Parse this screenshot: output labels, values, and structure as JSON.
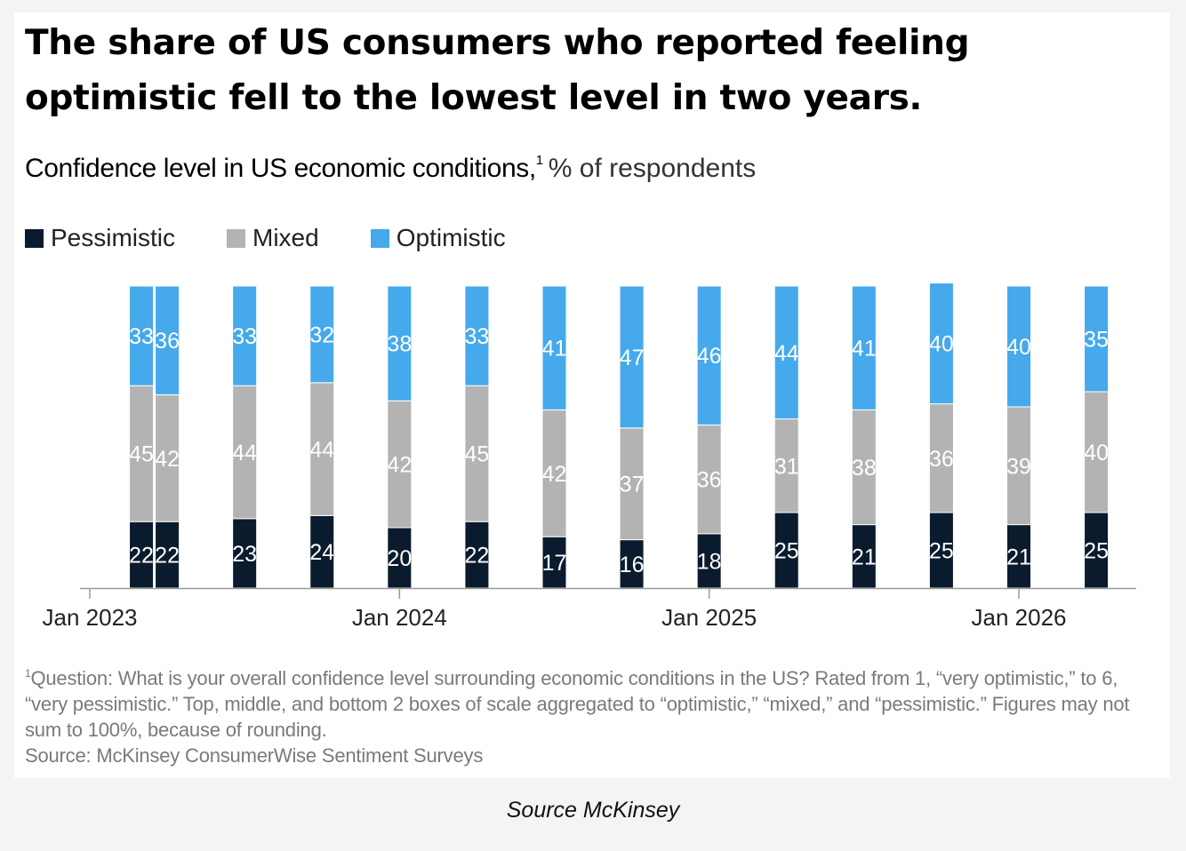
{
  "caption": "Source McKinsey",
  "chart_data": {
    "type": "bar",
    "stacked": true,
    "title": "The share of US consumers who reported feeling optimistic fell to the lowest level in two years.",
    "subtitle": "Confidence level in US economic conditions,",
    "subtitle_footnote_mark": "1",
    "subtitle_unit": "% of respondents",
    "x_ticks": [
      "Jan 2023",
      "Jan 2024",
      "Jan 2025",
      "Jan 2026"
    ],
    "x_tick_dates": [
      "2023-01",
      "2024-01",
      "2025-01",
      "2026-01"
    ],
    "x_dates": [
      "2023-03",
      "2023-04",
      "2023-07",
      "2023-10",
      "2024-01",
      "2024-04",
      "2024-07",
      "2024-10",
      "2025-01",
      "2025-04",
      "2025-07",
      "2025-10",
      "2026-01",
      "2026-04"
    ],
    "series": [
      {
        "name": "Pessimistic",
        "color": "#0b1b2e",
        "label_color": "#ffffff",
        "values": [
          22,
          22,
          23,
          24,
          20,
          22,
          17,
          16,
          18,
          25,
          21,
          25,
          21,
          25
        ]
      },
      {
        "name": "Mixed",
        "color": "#b3b3b3",
        "label_color": "#ffffff",
        "values": [
          45,
          42,
          44,
          44,
          42,
          45,
          42,
          37,
          36,
          31,
          38,
          36,
          39,
          40
        ]
      },
      {
        "name": "Optimistic",
        "color": "#45a9ec",
        "label_color": "#ffffff",
        "values": [
          33,
          36,
          33,
          32,
          38,
          33,
          41,
          47,
          46,
          44,
          41,
          40,
          40,
          35
        ]
      }
    ],
    "ylim": [
      0,
      100
    ],
    "grid": false,
    "legend_position": "top-left"
  },
  "footnote": {
    "mark": "1",
    "text": "Question: What is your overall confidence level surrounding economic conditions in the US? Rated from 1, “very optimistic,” to 6, “very pessimistic.” Top, middle, and bottom 2 boxes of scale aggregated to “optimistic,” “mixed,” and “pessimistic.” Figures may not sum to 100%, because of rounding.",
    "source": "Source: McKinsey ConsumerWise Sentiment Surveys"
  }
}
